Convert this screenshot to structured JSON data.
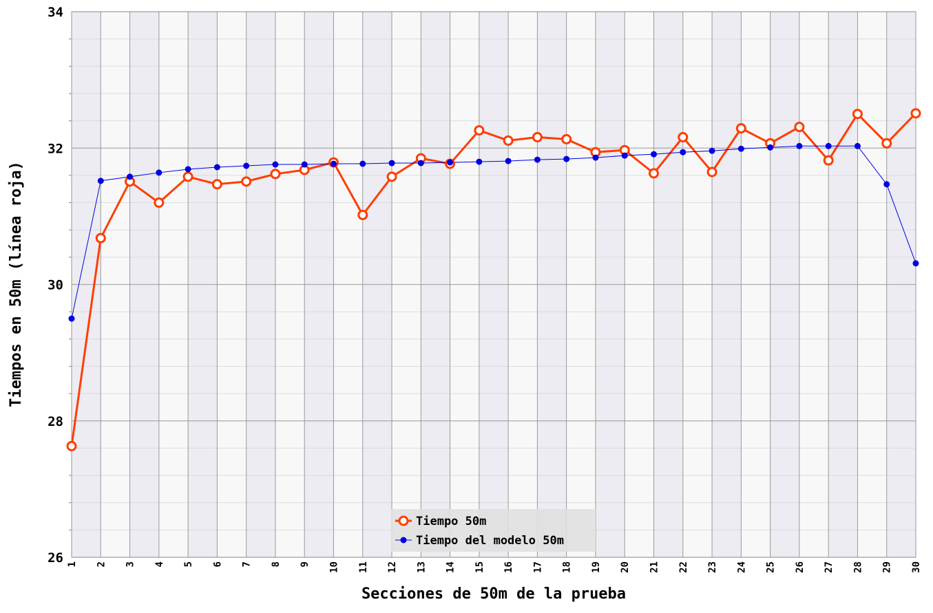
{
  "chart_data": {
    "type": "line",
    "x_label": "Secciones de 50m de la prueba",
    "y_label": "Tiempos en 50m (línea roja)",
    "x": [
      1,
      2,
      3,
      4,
      5,
      6,
      7,
      8,
      9,
      10,
      11,
      12,
      13,
      14,
      15,
      16,
      17,
      18,
      19,
      20,
      21,
      22,
      23,
      24,
      25,
      26,
      27,
      28,
      29,
      30
    ],
    "series": [
      {
        "name": "Tiempo 50m",
        "color": "#ff3d00",
        "values": [
          27.63,
          30.68,
          31.51,
          31.2,
          31.58,
          31.47,
          31.51,
          31.62,
          31.68,
          31.79,
          31.02,
          31.58,
          31.85,
          31.77,
          32.26,
          32.11,
          32.16,
          32.13,
          31.94,
          31.97,
          31.63,
          32.16,
          31.65,
          32.29,
          32.07,
          32.31,
          31.82,
          32.5,
          32.07,
          32.51
        ]
      },
      {
        "name": "Tiempo del modelo 50m",
        "color": "#0000e0",
        "values": [
          29.5,
          31.52,
          31.58,
          31.64,
          31.69,
          31.72,
          31.74,
          31.76,
          31.76,
          31.77,
          31.77,
          31.78,
          31.78,
          31.79,
          31.8,
          31.81,
          31.83,
          31.84,
          31.86,
          31.89,
          31.91,
          31.94,
          31.96,
          31.99,
          32.01,
          32.03,
          32.03,
          32.03,
          31.47,
          30.31
        ]
      }
    ],
    "xlim": [
      1,
      30
    ],
    "xticks": [
      1,
      2,
      3,
      4,
      5,
      6,
      7,
      8,
      9,
      10,
      11,
      12,
      13,
      14,
      15,
      16,
      17,
      18,
      19,
      20,
      21,
      22,
      23,
      24,
      25,
      26,
      27,
      28,
      29,
      30
    ],
    "ylim": [
      26,
      34
    ],
    "yticks": [
      26,
      28,
      30,
      32,
      34
    ],
    "grid": true,
    "legend": "lower center"
  }
}
